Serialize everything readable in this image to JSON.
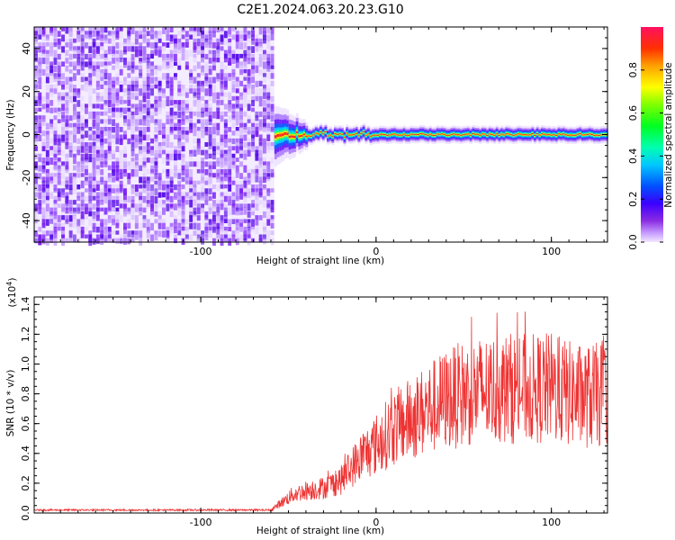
{
  "title": "C2E1.2024.063.20.23.G10",
  "chart_data": [
    {
      "type": "heatmap",
      "xlabel": "Height of straight line (km)",
      "ylabel": "Frequency (Hz)",
      "xlim": [
        -195,
        132
      ],
      "ylim": [
        -50,
        50
      ],
      "x_ticks": [
        "-100",
        "0",
        "100"
      ],
      "y_ticks": [
        "-40",
        "-20",
        "0",
        "20",
        "40"
      ],
      "colorbar": {
        "label": "Normalized spectral amplitude",
        "range": [
          0.0,
          1.0
        ],
        "ticks": [
          "0.0",
          "0.2",
          "0.4",
          "0.6",
          "0.8"
        ],
        "colormap": "rainbow"
      },
      "noise_region_x": [
        -195,
        -58
      ],
      "signal": {
        "x_start": -58,
        "center_frequency_hz": 0,
        "peak_color": "#ff2020"
      }
    },
    {
      "type": "line",
      "xlabel": "Height of straight line (km)",
      "ylabel": "SNR (10 * v/v)",
      "scale_label": "(x10",
      "scale_exponent": "4",
      "scale_suffix": ")",
      "xlim": [
        -195,
        132
      ],
      "ylim": [
        0,
        1.45
      ],
      "x_ticks": [
        "-100",
        "0",
        "100"
      ],
      "y_ticks": [
        "0.0",
        "0.2",
        "0.4",
        "0.6",
        "0.8",
        "1.0",
        "1.2",
        "1.4"
      ],
      "color": "#ee3333",
      "series_x": [
        -195,
        -60,
        -48,
        -40,
        -30,
        -20,
        -10,
        0,
        10,
        20,
        30,
        40,
        50,
        60,
        70,
        80,
        90,
        100,
        110,
        120,
        132
      ],
      "series_y": [
        0.02,
        0.02,
        0.12,
        0.15,
        0.17,
        0.22,
        0.36,
        0.46,
        0.57,
        0.63,
        0.7,
        0.76,
        0.8,
        0.82,
        0.83,
        0.84,
        0.83,
        0.84,
        0.8,
        0.78,
        0.8
      ]
    }
  ]
}
